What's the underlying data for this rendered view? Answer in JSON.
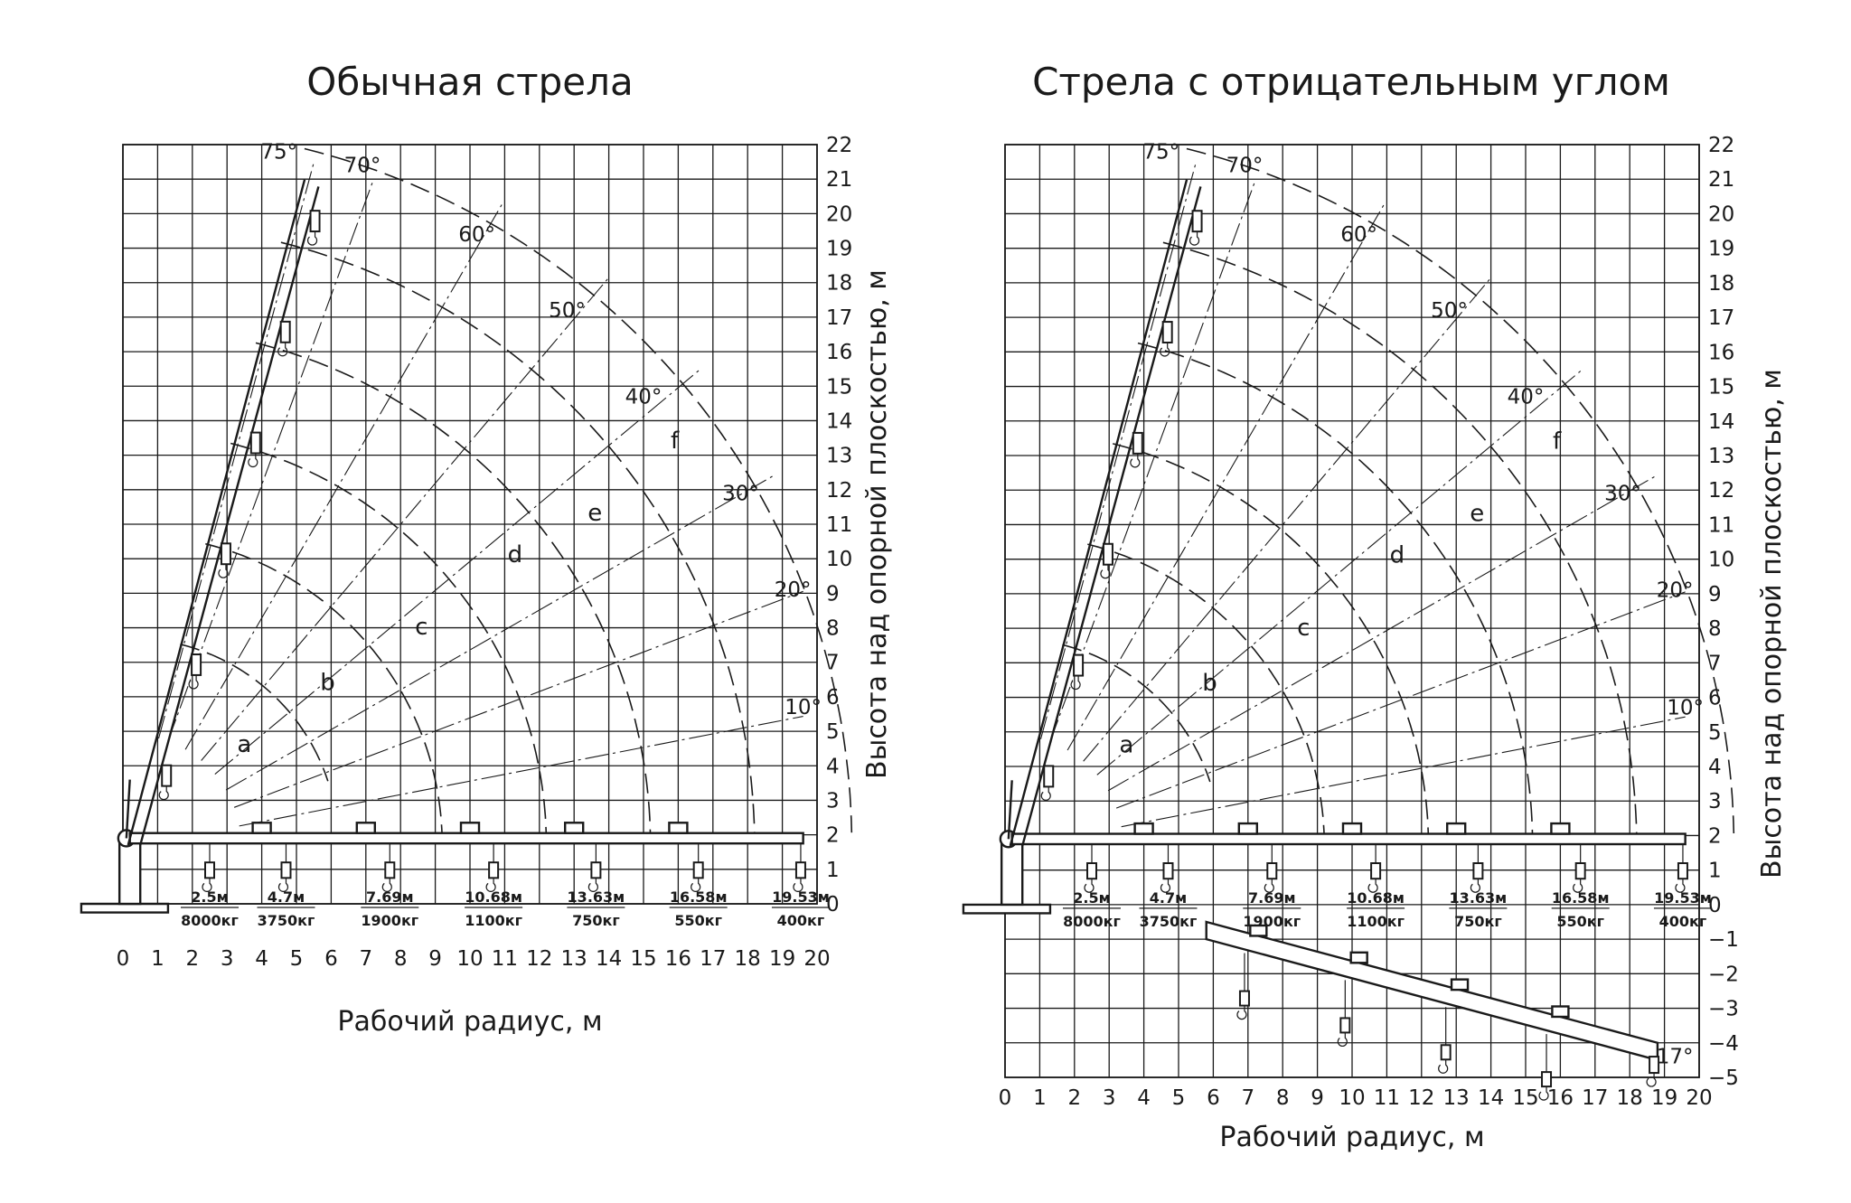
{
  "chart_data": [
    {
      "type": "line",
      "title": "Обычная стрела",
      "xlabel": "Рабочий радиус, м",
      "ylabel": "Высота над опорной плоскостью, м",
      "xlim": [
        0,
        20
      ],
      "ylim": [
        0,
        22
      ],
      "grid": true,
      "x_ticks": [
        "0",
        "1",
        "2",
        "3",
        "4",
        "5",
        "6",
        "7",
        "8",
        "9",
        "10",
        "11",
        "12",
        "13",
        "14",
        "15",
        "16",
        "17",
        "18",
        "19",
        "20"
      ],
      "y_ticks": [
        "0",
        "1",
        "2",
        "3",
        "4",
        "5",
        "6",
        "7",
        "8",
        "9",
        "10",
        "11",
        "12",
        "13",
        "14",
        "15",
        "16",
        "17",
        "18",
        "19",
        "20",
        "21",
        "22"
      ],
      "angle_labels": [
        {
          "text": "75°",
          "x": 4.5,
          "y": 21.6
        },
        {
          "text": "70°",
          "x": 6.9,
          "y": 21.2
        },
        {
          "text": "60°",
          "x": 10.2,
          "y": 19.2
        },
        {
          "text": "50°",
          "x": 12.8,
          "y": 17.0
        },
        {
          "text": "40°",
          "x": 15.0,
          "y": 14.5
        },
        {
          "text": "30°",
          "x": 17.8,
          "y": 11.7
        },
        {
          "text": "20°",
          "x": 19.3,
          "y": 8.9
        },
        {
          "text": "10°",
          "x": 19.6,
          "y": 5.5
        }
      ],
      "boom_angles_deg": [
        75,
        70,
        60,
        50,
        40,
        30,
        20,
        10
      ],
      "section_curves": [
        {
          "name": "a",
          "reach": 4.7
        },
        {
          "name": "b",
          "reach": 7.69
        },
        {
          "name": "c",
          "reach": 10.68
        },
        {
          "name": "d",
          "reach": 13.63
        },
        {
          "name": "e",
          "reach": 16.58
        },
        {
          "name": "f",
          "reach": 19.53
        }
      ],
      "curve_label_positions": [
        {
          "text": "a",
          "x": 3.5,
          "y": 4.4
        },
        {
          "text": "b",
          "x": 5.9,
          "y": 6.2
        },
        {
          "text": "c",
          "x": 8.6,
          "y": 7.8
        },
        {
          "text": "d",
          "x": 11.3,
          "y": 9.9
        },
        {
          "text": "e",
          "x": 13.6,
          "y": 11.1
        },
        {
          "text": "f",
          "x": 15.9,
          "y": 13.2
        }
      ],
      "capacities": [
        {
          "radius": "2.5м",
          "load": "8000кг",
          "x": 2.5
        },
        {
          "radius": "4.7м",
          "load": "3750кг",
          "x": 4.7
        },
        {
          "radius": "7.69м",
          "load": "1900кг",
          "x": 7.69
        },
        {
          "radius": "10.68м",
          "load": "1100кг",
          "x": 10.68
        },
        {
          "radius": "13.63м",
          "load": "750кг",
          "x": 13.63
        },
        {
          "radius": "16.58м",
          "load": "550кг",
          "x": 16.58
        },
        {
          "radius": "19.53м",
          "load": "400кг",
          "x": 19.53
        }
      ]
    },
    {
      "type": "line",
      "title": "Стрела с отрицательным углом",
      "xlabel": "Рабочий радиус, м",
      "ylabel": "Высота над опорной плоскостью, м",
      "xlim": [
        0,
        20
      ],
      "ylim": [
        -5,
        22
      ],
      "grid": true,
      "x_ticks": [
        "0",
        "1",
        "2",
        "3",
        "4",
        "5",
        "6",
        "7",
        "8",
        "9",
        "10",
        "11",
        "12",
        "13",
        "14",
        "15",
        "16",
        "17",
        "18",
        "19",
        "20"
      ],
      "y_ticks": [
        "−5",
        "−4",
        "−3",
        "−2",
        "−1",
        "0",
        "1",
        "2",
        "3",
        "4",
        "5",
        "6",
        "7",
        "8",
        "9",
        "10",
        "11",
        "12",
        "13",
        "14",
        "15",
        "16",
        "17",
        "18",
        "19",
        "20",
        "21",
        "22"
      ],
      "angle_labels": [
        {
          "text": "75°",
          "x": 4.5,
          "y": 21.6
        },
        {
          "text": "70°",
          "x": 6.9,
          "y": 21.2
        },
        {
          "text": "60°",
          "x": 10.2,
          "y": 19.2
        },
        {
          "text": "50°",
          "x": 12.8,
          "y": 17.0
        },
        {
          "text": "40°",
          "x": 15.0,
          "y": 14.5
        },
        {
          "text": "30°",
          "x": 17.8,
          "y": 11.7
        },
        {
          "text": "20°",
          "x": 19.3,
          "y": 8.9
        },
        {
          "text": "10°",
          "x": 19.6,
          "y": 5.5
        },
        {
          "text": "17°",
          "x": 19.3,
          "y": -4.6
        }
      ],
      "boom_angles_deg": [
        75,
        70,
        60,
        50,
        40,
        30,
        20,
        10,
        -17
      ],
      "section_curves": [
        {
          "name": "a",
          "reach": 4.7
        },
        {
          "name": "b",
          "reach": 7.69
        },
        {
          "name": "c",
          "reach": 10.68
        },
        {
          "name": "d",
          "reach": 13.63
        },
        {
          "name": "e",
          "reach": 16.58
        },
        {
          "name": "f",
          "reach": 19.53
        }
      ],
      "curve_label_positions": [
        {
          "text": "a",
          "x": 3.5,
          "y": 4.4
        },
        {
          "text": "b",
          "x": 5.9,
          "y": 6.2
        },
        {
          "text": "c",
          "x": 8.6,
          "y": 7.8
        },
        {
          "text": "d",
          "x": 11.3,
          "y": 9.9
        },
        {
          "text": "e",
          "x": 13.6,
          "y": 11.1
        },
        {
          "text": "f",
          "x": 15.9,
          "y": 13.2
        }
      ],
      "capacities": [
        {
          "radius": "2.5м",
          "load": "8000кг",
          "x": 2.5
        },
        {
          "radius": "4.7м",
          "load": "3750кг",
          "x": 4.7
        },
        {
          "radius": "7.69м",
          "load": "1900кг",
          "x": 7.69
        },
        {
          "radius": "10.68м",
          "load": "1100кг",
          "x": 10.68
        },
        {
          "radius": "13.63м",
          "load": "750кг",
          "x": 13.63
        },
        {
          "radius": "16.58м",
          "load": "550кг",
          "x": 16.58
        },
        {
          "radius": "19.53м",
          "load": "400кг",
          "x": 19.53
        }
      ]
    }
  ]
}
